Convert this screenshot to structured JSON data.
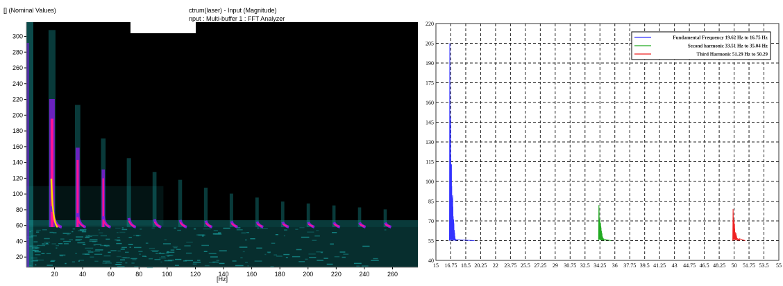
{
  "chart_data": [
    {
      "type": "heatmap",
      "title_parts": [
        "[] (Nominal Values)",
        "ctrum(laser) - Input (Magnitude)",
        "nput : Multi-buffer 1 : FFT Analyzer"
      ],
      "xlabel": "[Hz]",
      "ylabel": "",
      "xlim": [
        0,
        278
      ],
      "ylim": [
        7,
        318
      ],
      "x_ticks": [
        20,
        40,
        60,
        80,
        100,
        120,
        140,
        160,
        180,
        200,
        220,
        240,
        260
      ],
      "y_ticks": [
        20,
        40,
        60,
        80,
        100,
        120,
        140,
        160,
        180,
        200,
        220,
        240,
        260,
        280,
        300
      ],
      "ridge_floor": 58,
      "ridges": [
        {
          "f": 18.2,
          "h": 1.0
        },
        {
          "f": 36.4,
          "h": 0.62
        },
        {
          "f": 54.6,
          "h": 0.45
        },
        {
          "f": 72.8,
          "h": 0.35
        },
        {
          "f": 91,
          "h": 0.28
        },
        {
          "f": 109.2,
          "h": 0.24
        },
        {
          "f": 127.4,
          "h": 0.2
        },
        {
          "f": 145.6,
          "h": 0.17
        },
        {
          "f": 163.8,
          "h": 0.15
        },
        {
          "f": 182,
          "h": 0.13
        },
        {
          "f": 200.2,
          "h": 0.12
        },
        {
          "f": 218.4,
          "h": 0.11
        },
        {
          "f": 236.6,
          "h": 0.1
        },
        {
          "f": 254.8,
          "h": 0.09
        }
      ],
      "colors": {
        "background": "#000000",
        "noise": "#1aa6a6",
        "band": "#7b1fd6",
        "peak": "#ff1493",
        "core": "#ffd700"
      }
    },
    {
      "type": "line",
      "xlabel": "",
      "ylabel": "",
      "ylim": [
        40,
        220
      ],
      "y_ticks": [
        40,
        55,
        70,
        85,
        100,
        115,
        130,
        145,
        160,
        175,
        190,
        205,
        220
      ],
      "x_tick_labels": [
        "15",
        "16.75",
        "18.5",
        "20.25",
        "22",
        "23.75",
        "25.5",
        "27.25",
        "29",
        "30.75",
        "32.5",
        "34.25",
        "36",
        "37.75",
        "39.5",
        "41.25",
        "43",
        "44.75",
        "46.5",
        "48.25",
        "50",
        "51.75",
        "53.5",
        "55"
      ],
      "grid": true,
      "legend_position": "top-right",
      "series": [
        {
          "name": "Fundamental Frequency 19.62 Hz to 16.75 Hz",
          "color": "#3333ff",
          "tick_index": 1,
          "peak": 205,
          "base": 55
        },
        {
          "name": "Second harmonic 33.51 Hz to 35.04 Hz",
          "color": "#22aa22",
          "tick_index": 11,
          "peak": 82,
          "base": 55
        },
        {
          "name": "Third Harmonic 51.29 Hz to 50.29",
          "color": "#ee2222",
          "tick_index": 20,
          "peak": 79,
          "base": 55
        }
      ]
    }
  ]
}
